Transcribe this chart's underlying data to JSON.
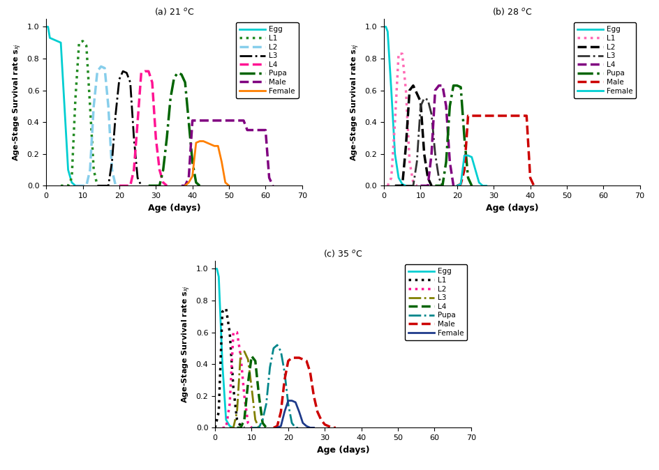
{
  "title_a": "(a) 21 $^o$C",
  "title_b": "(b) 28 $^o$C",
  "title_c": "(c) 35 $^o$C",
  "xlabel": "Age (days)",
  "ylabel": "Age-Stage Survival rate s$_{xj}$",
  "xlim": [
    0,
    70
  ],
  "ylim": [
    0,
    1.05
  ],
  "xticks": [
    0,
    10,
    20,
    30,
    40,
    50,
    60,
    70
  ],
  "yticks": [
    0.0,
    0.2,
    0.4,
    0.6,
    0.8,
    1.0
  ],
  "legend_labels": [
    "Egg",
    "L1",
    "L2",
    "L3",
    "L4",
    "Pupa",
    "Male",
    "Female"
  ],
  "panel_a": {
    "Egg": {
      "x": [
        0,
        0.5,
        1,
        2,
        3,
        4,
        5,
        6,
        7,
        8
      ],
      "y": [
        1.0,
        1.0,
        0.93,
        0.92,
        0.91,
        0.9,
        0.5,
        0.1,
        0.02,
        0.0
      ],
      "color": "#00CED1",
      "ls": "solid",
      "lw": 2.0
    },
    "L1": {
      "x": [
        4,
        6,
        7,
        8,
        9,
        10,
        11,
        12,
        13,
        14
      ],
      "y": [
        0.0,
        0.0,
        0.05,
        0.55,
        0.9,
        0.91,
        0.88,
        0.5,
        0.1,
        0.0
      ],
      "color": "#228B22",
      "ls": "dotted",
      "lw": 2.5
    },
    "L2": {
      "x": [
        8,
        11,
        12,
        13,
        14,
        15,
        16,
        17,
        18,
        19
      ],
      "y": [
        0.0,
        0.0,
        0.1,
        0.5,
        0.72,
        0.75,
        0.74,
        0.5,
        0.1,
        0.0
      ],
      "color": "#87CEEB",
      "ls": "dashed",
      "lw": 2.5
    },
    "L3": {
      "x": [
        14,
        17,
        18,
        19,
        20,
        21,
        22,
        23,
        24,
        25,
        26
      ],
      "y": [
        0.0,
        0.0,
        0.15,
        0.45,
        0.67,
        0.72,
        0.71,
        0.65,
        0.3,
        0.05,
        0.0
      ],
      "color": "#000000",
      "ls": "dashdot",
      "lw": 2.0
    },
    "L4": {
      "x": [
        20,
        23,
        24,
        25,
        26,
        27,
        28,
        29,
        30,
        31,
        32,
        33
      ],
      "y": [
        0.0,
        0.0,
        0.1,
        0.4,
        0.71,
        0.72,
        0.72,
        0.65,
        0.3,
        0.1,
        0.02,
        0.0
      ],
      "color": "#FF1493",
      "ls": "dashed",
      "lw": 2.5
    },
    "Pupa": {
      "x": [
        28,
        31,
        32,
        33,
        34,
        35,
        36,
        37,
        38,
        39,
        40,
        41,
        42
      ],
      "y": [
        0.0,
        0.0,
        0.1,
        0.3,
        0.55,
        0.68,
        0.71,
        0.7,
        0.65,
        0.4,
        0.15,
        0.02,
        0.0
      ],
      "color": "#006400",
      "ls": "dashdot",
      "lw": 2.5
    },
    "Male": {
      "x": [
        37,
        38,
        39,
        40,
        41,
        42,
        43,
        44,
        45,
        46,
        47,
        48,
        49,
        50,
        51,
        52,
        53,
        54,
        55,
        56,
        57,
        58,
        59,
        60,
        61,
        62
      ],
      "y": [
        0.0,
        0.0,
        0.05,
        0.41,
        0.41,
        0.41,
        0.41,
        0.41,
        0.41,
        0.41,
        0.41,
        0.41,
        0.41,
        0.41,
        0.41,
        0.41,
        0.41,
        0.41,
        0.35,
        0.35,
        0.35,
        0.35,
        0.35,
        0.35,
        0.05,
        0.0
      ],
      "color": "#800080",
      "ls": "dashed",
      "lw": 2.5
    },
    "Female": {
      "x": [
        38,
        39,
        40,
        41,
        42,
        43,
        44,
        45,
        46,
        47,
        48,
        49,
        50
      ],
      "y": [
        0.0,
        0.02,
        0.06,
        0.27,
        0.28,
        0.28,
        0.27,
        0.26,
        0.25,
        0.25,
        0.15,
        0.02,
        0.0
      ],
      "color": "#FF7F00",
      "ls": "solid",
      "lw": 2.0
    }
  },
  "panel_b": {
    "Egg": {
      "x": [
        0,
        0.5,
        1,
        2,
        3,
        4,
        5,
        6
      ],
      "y": [
        1.0,
        1.0,
        0.97,
        0.6,
        0.2,
        0.05,
        0.01,
        0.0
      ],
      "color": "#00CED1",
      "ls": "solid",
      "lw": 2.0
    },
    "L1": {
      "x": [
        1,
        2,
        3,
        4,
        5,
        6,
        7,
        8,
        9
      ],
      "y": [
        0.0,
        0.05,
        0.4,
        0.83,
        0.83,
        0.6,
        0.15,
        0.02,
        0.0
      ],
      "color": "#FF69B4",
      "ls": "dotted",
      "lw": 2.5
    },
    "L2": {
      "x": [
        3,
        5,
        6,
        7,
        8,
        9,
        10,
        11,
        12,
        13
      ],
      "y": [
        0.0,
        0.0,
        0.25,
        0.6,
        0.63,
        0.58,
        0.53,
        0.2,
        0.05,
        0.0
      ],
      "color": "#000000",
      "ls": "dashed",
      "lw": 2.5
    },
    "L3": {
      "x": [
        6,
        8,
        9,
        10,
        11,
        12,
        13,
        14,
        15,
        16
      ],
      "y": [
        0.0,
        0.0,
        0.15,
        0.5,
        0.55,
        0.54,
        0.45,
        0.2,
        0.05,
        0.0
      ],
      "color": "#333333",
      "ls": "dashdot",
      "lw": 2.0
    },
    "L4": {
      "x": [
        10,
        12,
        13,
        14,
        15,
        16,
        17,
        18,
        19
      ],
      "y": [
        0.0,
        0.0,
        0.2,
        0.6,
        0.63,
        0.63,
        0.5,
        0.15,
        0.0
      ],
      "color": "#800080",
      "ls": "dashed",
      "lw": 2.5
    },
    "Pupa": {
      "x": [
        14,
        16,
        17,
        18,
        19,
        20,
        21,
        22,
        23,
        24
      ],
      "y": [
        0.0,
        0.0,
        0.15,
        0.5,
        0.63,
        0.63,
        0.62,
        0.3,
        0.05,
        0.0
      ],
      "color": "#006400",
      "ls": "dashdot",
      "lw": 2.5
    },
    "Male": {
      "x": [
        20,
        21,
        22,
        23,
        24,
        25,
        26,
        27,
        28,
        29,
        30,
        31,
        32,
        33,
        34,
        35,
        36,
        37,
        38,
        39,
        40,
        41
      ],
      "y": [
        0.0,
        0.01,
        0.1,
        0.44,
        0.44,
        0.44,
        0.44,
        0.44,
        0.44,
        0.44,
        0.44,
        0.44,
        0.44,
        0.44,
        0.44,
        0.44,
        0.44,
        0.44,
        0.44,
        0.44,
        0.05,
        0.0
      ],
      "color": "#CC0000",
      "ls": "dashed",
      "lw": 2.5
    },
    "Female": {
      "x": [
        20,
        21,
        22,
        23,
        24,
        25,
        26,
        27,
        28
      ],
      "y": [
        0.0,
        0.01,
        0.19,
        0.19,
        0.18,
        0.1,
        0.02,
        0.0,
        0.0
      ],
      "color": "#00CED1",
      "ls": "solid",
      "lw": 2.0
    }
  },
  "panel_c": {
    "Egg": {
      "x": [
        0,
        0.5,
        1,
        2,
        3,
        4,
        5
      ],
      "y": [
        1.0,
        1.0,
        0.95,
        0.4,
        0.05,
        0.01,
        0.0
      ],
      "color": "#00CED1",
      "ls": "solid",
      "lw": 2.0
    },
    "L1": {
      "x": [
        0,
        1,
        2,
        3,
        4,
        5,
        6,
        7,
        8
      ],
      "y": [
        0.0,
        0.1,
        0.73,
        0.75,
        0.6,
        0.25,
        0.05,
        0.01,
        0.0
      ],
      "color": "#000000",
      "ls": "dotted",
      "lw": 2.5
    },
    "L2": {
      "x": [
        2,
        3,
        4,
        5,
        6,
        7,
        8,
        9,
        10
      ],
      "y": [
        0.0,
        0.0,
        0.15,
        0.6,
        0.6,
        0.45,
        0.2,
        0.03,
        0.0
      ],
      "color": "#FF1493",
      "ls": "dotted",
      "lw": 2.5
    },
    "L3": {
      "x": [
        4,
        5,
        6,
        7,
        8,
        9,
        10,
        11,
        12
      ],
      "y": [
        0.0,
        0.0,
        0.1,
        0.47,
        0.48,
        0.43,
        0.25,
        0.05,
        0.0
      ],
      "color": "#808000",
      "ls": "dashdot",
      "lw": 2.0
    },
    "L4": {
      "x": [
        6,
        7,
        8,
        9,
        10,
        11,
        12,
        13,
        14
      ],
      "y": [
        0.0,
        0.0,
        0.05,
        0.28,
        0.45,
        0.42,
        0.2,
        0.03,
        0.0
      ],
      "color": "#006400",
      "ls": "dashed",
      "lw": 2.5
    },
    "Pupa": {
      "x": [
        10,
        12,
        13,
        14,
        15,
        16,
        17,
        18,
        19,
        20,
        21,
        22,
        23
      ],
      "y": [
        0.0,
        0.0,
        0.05,
        0.15,
        0.38,
        0.5,
        0.52,
        0.48,
        0.35,
        0.15,
        0.03,
        0.0,
        0.0
      ],
      "color": "#00868B",
      "ls": "dashdot",
      "lw": 2.0
    },
    "Male": {
      "x": [
        16,
        17,
        18,
        19,
        20,
        21,
        22,
        23,
        24,
        25,
        26,
        27,
        28,
        29,
        30,
        31,
        32,
        33
      ],
      "y": [
        0.0,
        0.01,
        0.1,
        0.3,
        0.42,
        0.44,
        0.44,
        0.44,
        0.43,
        0.42,
        0.35,
        0.2,
        0.1,
        0.05,
        0.02,
        0.01,
        0.0,
        0.0
      ],
      "color": "#CC0000",
      "ls": "dashed",
      "lw": 2.5
    },
    "Female": {
      "x": [
        17,
        18,
        19,
        20,
        21,
        22,
        23,
        24,
        25,
        26,
        27
      ],
      "y": [
        0.0,
        0.01,
        0.1,
        0.17,
        0.17,
        0.16,
        0.1,
        0.03,
        0.01,
        0.0,
        0.0
      ],
      "color": "#1E3A8A",
      "ls": "solid",
      "lw": 2.0
    }
  },
  "legend_a": {
    "colors": [
      "#00CED1",
      "#228B22",
      "#87CEEB",
      "#000000",
      "#FF1493",
      "#006400",
      "#800080",
      "#FF7F00"
    ],
    "ls": [
      "solid",
      "dotted",
      "dashed",
      "dashdot",
      "dashed",
      "dashdot",
      "dashed",
      "solid"
    ],
    "lw": [
      2.0,
      2.5,
      2.5,
      2.0,
      2.5,
      2.5,
      2.5,
      2.0
    ]
  },
  "legend_b": {
    "colors": [
      "#00CED1",
      "#FF69B4",
      "#000000",
      "#333333",
      "#800080",
      "#006400",
      "#CC0000",
      "#00CED1"
    ],
    "ls": [
      "solid",
      "dotted",
      "dashed",
      "dashdot",
      "dashed",
      "dashdot",
      "dashed",
      "solid"
    ],
    "lw": [
      2.0,
      2.5,
      2.5,
      2.0,
      2.5,
      2.5,
      2.5,
      2.0
    ]
  },
  "legend_c": {
    "colors": [
      "#00CED1",
      "#000000",
      "#FF1493",
      "#808000",
      "#006400",
      "#00868B",
      "#CC0000",
      "#1E3A8A"
    ],
    "ls": [
      "solid",
      "dotted",
      "dotted",
      "dashdot",
      "dashed",
      "dashdot",
      "dashed",
      "solid"
    ],
    "lw": [
      2.0,
      2.5,
      2.5,
      2.0,
      2.5,
      2.0,
      2.5,
      2.0
    ]
  }
}
